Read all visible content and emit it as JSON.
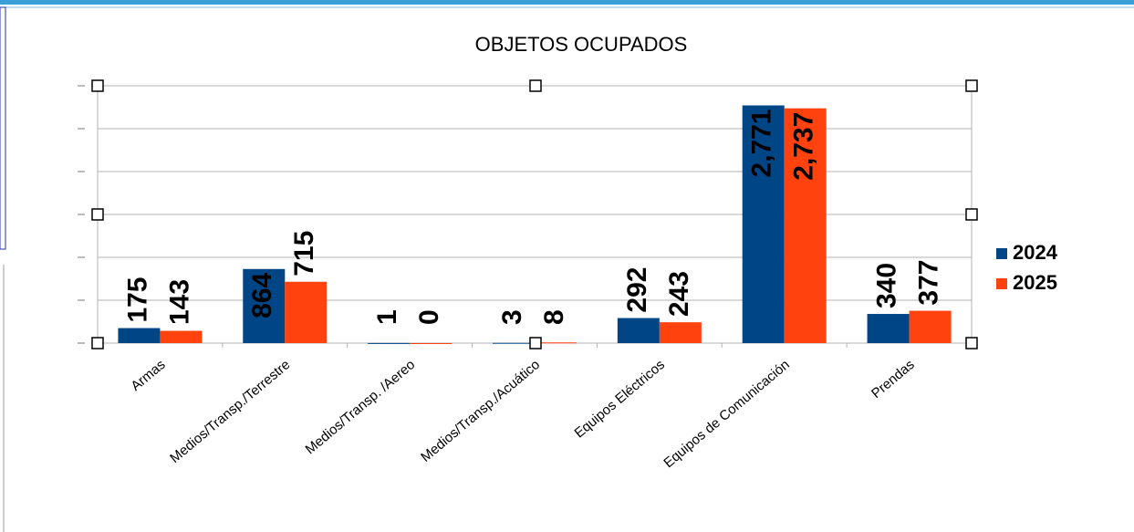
{
  "chart_data": {
    "type": "bar",
    "title": "OBJETOS OCUPADOS",
    "categories": [
      "Armas",
      "Medios/Transp./Terrestre",
      "Medios/Transp. /Aereo",
      "Medios/Transp./Acuático",
      "Equipos Eléctricos",
      "Equipos de Comunicación",
      "Prendas"
    ],
    "series": [
      {
        "name": "2024",
        "color": "#004586",
        "values": [
          175,
          864,
          1,
          3,
          292,
          2771,
          340
        ],
        "value_labels": [
          "175",
          "864",
          "1",
          "3",
          "292",
          "2,771",
          "340"
        ]
      },
      {
        "name": "2025",
        "color": "#ff420e",
        "values": [
          143,
          715,
          0,
          8,
          243,
          2737,
          377
        ],
        "value_labels": [
          "143",
          "715",
          "0",
          "8",
          "243",
          "2,737",
          "377"
        ]
      }
    ],
    "ylim": [
      0,
      3000
    ],
    "yticks": [
      0,
      500,
      1000,
      1500,
      2000,
      2500,
      3000
    ],
    "grid": true,
    "legend": "right"
  }
}
